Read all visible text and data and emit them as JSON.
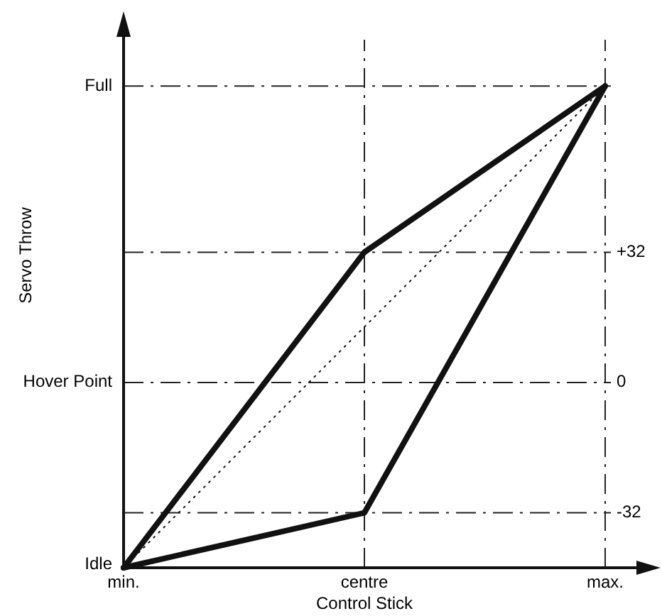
{
  "chart_data": {
    "type": "line",
    "xlabel": "Control Stick",
    "ylabel": "Servo Throw",
    "categories": [
      "min.",
      "centre",
      "max."
    ],
    "ylim": [
      -45.5,
      80
    ],
    "yticks": [
      {
        "value": 32,
        "label": "+32"
      },
      0,
      {
        "value": -32,
        "label": "-32"
      }
    ],
    "annotations": [
      "Idle"
    ],
    "series": [
      {
        "color": "#111111",
        "line_style": "solid",
        "values": [
          -45.5,
          32,
          72.8
        ]
      },
      {
        "color": "#111111",
        "line_style": "solid",
        "values": [
          -45.5,
          -32,
          72.8
        ]
      },
      {
        "color": "#111111",
        "line_style": "dotted",
        "values": [
          -45.5,
          null,
          72.8
        ]
      }
    ],
    "ref_lines": [
      {
        "axis": "x",
        "value": "centre",
        "line_style": "dashdot"
      },
      {
        "axis": "x",
        "value": "max.",
        "line_style": "dashdot"
      },
      {
        "axis": "y",
        "value": 72.8,
        "line_style": "dashdot",
        "label": "Full"
      },
      {
        "axis": "y",
        "value": 32,
        "line_style": "dashdot"
      },
      {
        "axis": "y",
        "value": 0,
        "line_style": "dashdot",
        "label": "Hover Point"
      },
      {
        "axis": "y",
        "value": -32,
        "line_style": "dashdot"
      }
    ],
    "marker": "none"
  }
}
